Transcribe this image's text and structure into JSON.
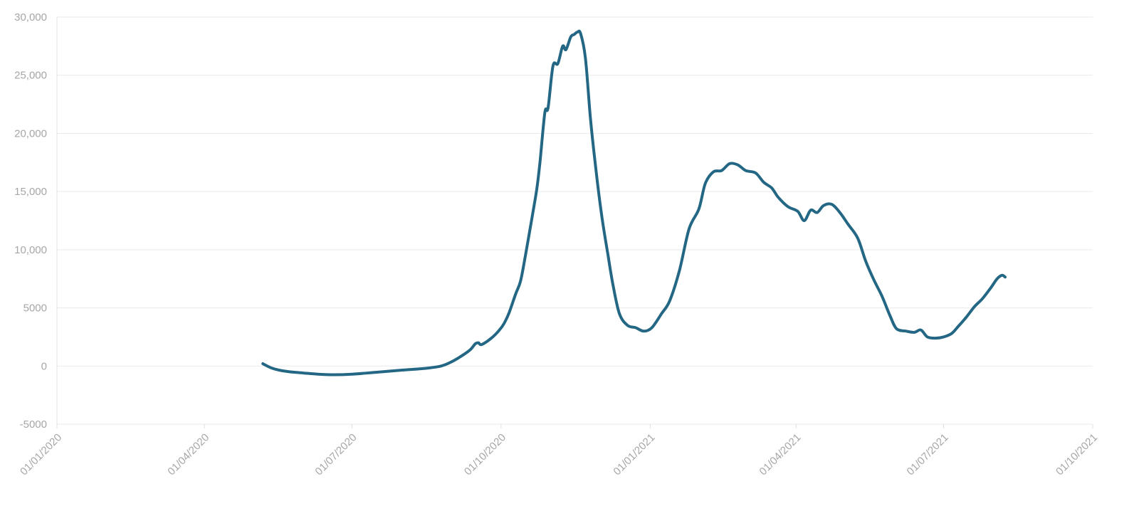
{
  "chart_data": {
    "type": "line",
    "title": "",
    "xlabel": "",
    "ylabel": "",
    "grid": true,
    "legend": "none",
    "xlim": [
      "2020-01-01",
      "2021-10-01"
    ],
    "ylim": [
      -5000,
      30000
    ],
    "y_ticks": [
      {
        "value": -5000,
        "label": "-5000"
      },
      {
        "value": 0,
        "label": "0"
      },
      {
        "value": 5000,
        "label": "5000"
      },
      {
        "value": 10000,
        "label": "10,000"
      },
      {
        "value": 15000,
        "label": "15,000"
      },
      {
        "value": 20000,
        "label": "20,000"
      },
      {
        "value": 25000,
        "label": "25,000"
      },
      {
        "value": 30000,
        "label": "30,000"
      }
    ],
    "x_ticks": [
      {
        "value": "2020-01-01",
        "label": "01/01/2020"
      },
      {
        "value": "2020-04-01",
        "label": "01/04/2020"
      },
      {
        "value": "2020-07-01",
        "label": "01/07/2020"
      },
      {
        "value": "2020-10-01",
        "label": "01/10/2020"
      },
      {
        "value": "2021-01-01",
        "label": "01/01/2021"
      },
      {
        "value": "2021-04-01",
        "label": "01/04/2021"
      },
      {
        "value": "2021-07-01",
        "label": "01/07/2021"
      },
      {
        "value": "2021-10-01",
        "label": "01/10/2021"
      }
    ],
    "colors": {
      "series": "#236784",
      "grid": "#e9e9e9",
      "tick_text": "#a6a6a6"
    },
    "series": [
      {
        "color": "#236784",
        "points": [
          [
            "2020-05-07",
            200
          ],
          [
            "2020-05-12",
            -150
          ],
          [
            "2020-05-17",
            -350
          ],
          [
            "2020-05-24",
            -500
          ],
          [
            "2020-06-01",
            -600
          ],
          [
            "2020-06-10",
            -700
          ],
          [
            "2020-06-20",
            -750
          ],
          [
            "2020-07-01",
            -700
          ],
          [
            "2020-07-15",
            -550
          ],
          [
            "2020-08-01",
            -350
          ],
          [
            "2020-08-15",
            -200
          ],
          [
            "2020-08-25",
            0
          ],
          [
            "2020-09-01",
            400
          ],
          [
            "2020-09-07",
            900
          ],
          [
            "2020-09-12",
            1400
          ],
          [
            "2020-09-15",
            1900
          ],
          [
            "2020-09-17",
            2000
          ],
          [
            "2020-09-19",
            1850
          ],
          [
            "2020-09-25",
            2400
          ],
          [
            "2020-09-30",
            3100
          ],
          [
            "2020-10-03",
            3700
          ],
          [
            "2020-10-06",
            4600
          ],
          [
            "2020-10-10",
            6200
          ],
          [
            "2020-10-13",
            7300
          ],
          [
            "2020-10-16",
            9500
          ],
          [
            "2020-10-20",
            12700
          ],
          [
            "2020-10-23",
            15200
          ],
          [
            "2020-10-25",
            17500
          ],
          [
            "2020-10-28",
            21800
          ],
          [
            "2020-10-30",
            22200
          ],
          [
            "2020-11-02",
            25800
          ],
          [
            "2020-11-05",
            26000
          ],
          [
            "2020-11-08",
            27500
          ],
          [
            "2020-11-10",
            27200
          ],
          [
            "2020-11-13",
            28300
          ],
          [
            "2020-11-15",
            28500
          ],
          [
            "2020-11-17",
            28700
          ],
          [
            "2020-11-19",
            28600
          ],
          [
            "2020-11-22",
            26500
          ],
          [
            "2020-11-25",
            21500
          ],
          [
            "2020-11-28",
            17500
          ],
          [
            "2020-12-02",
            13000
          ],
          [
            "2020-12-06",
            9500
          ],
          [
            "2020-12-09",
            7000
          ],
          [
            "2020-12-13",
            4500
          ],
          [
            "2020-12-18",
            3500
          ],
          [
            "2020-12-23",
            3300
          ],
          [
            "2020-12-28",
            3000
          ],
          [
            "2021-01-02",
            3300
          ],
          [
            "2021-01-08",
            4500
          ],
          [
            "2021-01-13",
            5600
          ],
          [
            "2021-01-19",
            8200
          ],
          [
            "2021-01-25",
            11800
          ],
          [
            "2021-01-31",
            13500
          ],
          [
            "2021-02-04",
            15700
          ],
          [
            "2021-02-09",
            16700
          ],
          [
            "2021-02-14",
            16800
          ],
          [
            "2021-02-19",
            17400
          ],
          [
            "2021-02-24",
            17300
          ],
          [
            "2021-03-01",
            16800
          ],
          [
            "2021-03-07",
            16600
          ],
          [
            "2021-03-12",
            15800
          ],
          [
            "2021-03-17",
            15300
          ],
          [
            "2021-03-21",
            14500
          ],
          [
            "2021-03-27",
            13700
          ],
          [
            "2021-04-02",
            13300
          ],
          [
            "2021-04-06",
            12500
          ],
          [
            "2021-04-10",
            13400
          ],
          [
            "2021-04-14",
            13200
          ],
          [
            "2021-04-18",
            13800
          ],
          [
            "2021-04-23",
            13900
          ],
          [
            "2021-04-28",
            13200
          ],
          [
            "2021-05-03",
            12200
          ],
          [
            "2021-05-09",
            11000
          ],
          [
            "2021-05-14",
            9000
          ],
          [
            "2021-05-19",
            7400
          ],
          [
            "2021-05-24",
            6000
          ],
          [
            "2021-05-29",
            4300
          ],
          [
            "2021-06-02",
            3200
          ],
          [
            "2021-06-08",
            3000
          ],
          [
            "2021-06-13",
            2900
          ],
          [
            "2021-06-17",
            3100
          ],
          [
            "2021-06-21",
            2500
          ],
          [
            "2021-06-26",
            2400
          ],
          [
            "2021-07-01",
            2500
          ],
          [
            "2021-07-06",
            2800
          ],
          [
            "2021-07-10",
            3400
          ],
          [
            "2021-07-15",
            4200
          ],
          [
            "2021-07-20",
            5100
          ],
          [
            "2021-07-25",
            5800
          ],
          [
            "2021-07-30",
            6700
          ],
          [
            "2021-08-03",
            7500
          ],
          [
            "2021-08-06",
            7800
          ],
          [
            "2021-08-08",
            7650
          ]
        ]
      }
    ]
  }
}
